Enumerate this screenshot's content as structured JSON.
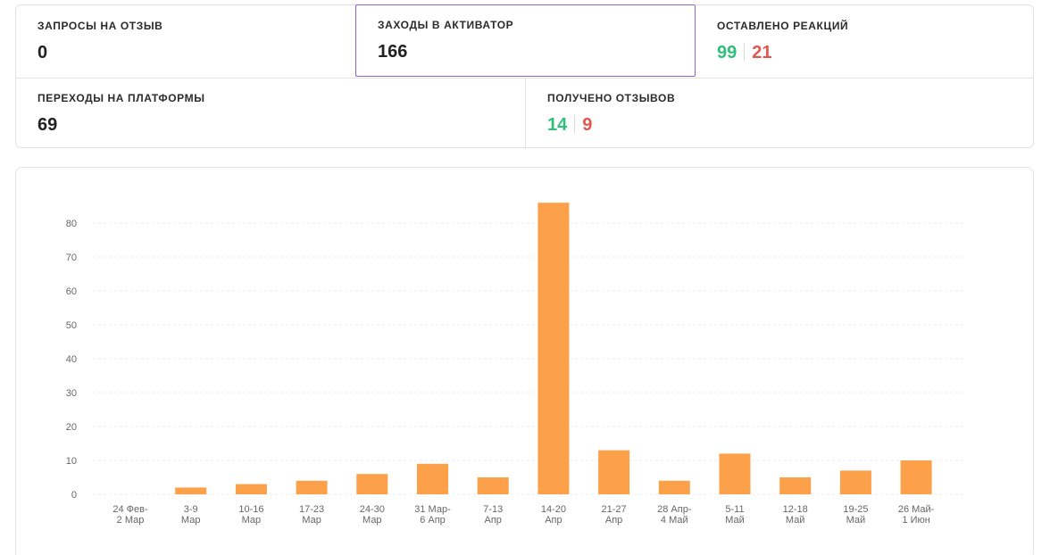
{
  "stats": {
    "review_requests": {
      "label": "ЗАПРОСЫ НА ОТЗЫВ",
      "value": "0"
    },
    "activator_visits": {
      "label": "ЗАХОДЫ В АКТИВАТОР",
      "value": "166"
    },
    "reactions_left": {
      "label": "ОСТАВЛЕНО РЕАКЦИЙ",
      "positive": "99",
      "negative": "21"
    },
    "platform_transitions": {
      "label": "ПЕРЕХОДЫ НА ПЛАТФОРМЫ",
      "value": "69"
    },
    "reviews_received": {
      "label": "ПОЛУЧЕНО ОТЗЫВОВ",
      "positive": "14",
      "negative": "9"
    }
  },
  "colors": {
    "bar": "#fda04a",
    "positive": "#2fbf7a",
    "negative": "#e0574f",
    "selected_border": "#8a63d2"
  },
  "chart_data": {
    "type": "bar",
    "categories": [
      [
        "24 Фев-",
        "2 Мар"
      ],
      [
        "3-9",
        "Мар"
      ],
      [
        "10-16",
        "Мар"
      ],
      [
        "17-23",
        "Мар"
      ],
      [
        "24-30",
        "Мар"
      ],
      [
        "31 Мар-",
        "6 Апр"
      ],
      [
        "7-13",
        "Апр"
      ],
      [
        "14-20",
        "Апр"
      ],
      [
        "21-27",
        "Апр"
      ],
      [
        "28 Апр-",
        "4 Май"
      ],
      [
        "5-11",
        "Май"
      ],
      [
        "12-18",
        "Май"
      ],
      [
        "19-25",
        "Май"
      ],
      [
        "26 Май-",
        "1 Июн"
      ]
    ],
    "values": [
      0,
      2,
      3,
      4,
      6,
      9,
      5,
      86,
      13,
      4,
      12,
      5,
      7,
      10
    ],
    "yticks": [
      0,
      10,
      20,
      30,
      40,
      50,
      60,
      70,
      80
    ],
    "ylim": [
      0,
      90
    ],
    "grid": true,
    "title": "",
    "xlabel": "",
    "ylabel": ""
  }
}
